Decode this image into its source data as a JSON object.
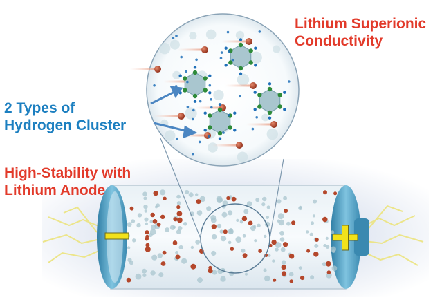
{
  "labels": {
    "superionic": {
      "line1": "Lithium Superionic",
      "line2": "Conductivity"
    },
    "cluster_types": {
      "line1": "2 Types of",
      "line2": "Hydrogen Cluster"
    },
    "stability": {
      "line1": "High-Stability with",
      "line2": "Lithium Anode"
    }
  },
  "terminals": {
    "negative": "−",
    "positive": "+"
  },
  "colors": {
    "red_label": "#e23a2a",
    "blue_label": "#1c7fc0",
    "cluster": "#a9c6cf",
    "cluster_node": "#2e8b3a",
    "lithium_ion": "#b4472b",
    "hydrogen": "#1f6fb8",
    "terminal_sign": "#f2e21a",
    "electrode": "#4f9fc2",
    "spark": "#e8e08a"
  },
  "icons": [
    "lightning-spark-icon",
    "arrow-icon",
    "minus-sign-icon",
    "plus-sign-icon"
  ]
}
